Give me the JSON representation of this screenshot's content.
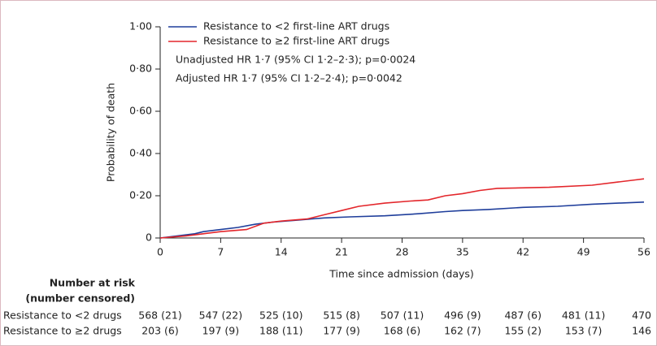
{
  "chart_data": {
    "type": "line",
    "step": true,
    "x_label": "Time since admission (days)",
    "y_label": "Probability of death",
    "xlim": [
      0,
      56
    ],
    "xticks": [
      0,
      7,
      14,
      21,
      28,
      35,
      42,
      49,
      56
    ],
    "ylim": [
      0,
      1
    ],
    "yticks": [
      0,
      {
        "value": 0.2,
        "label": "0·20"
      },
      {
        "value": 0.4,
        "label": "0·40"
      },
      {
        "value": 0.6,
        "label": "0·60"
      },
      {
        "value": 0.8,
        "label": "0·80"
      },
      {
        "value": 1,
        "label": "1·00"
      }
    ],
    "series": [
      {
        "name": "Resistance to <2 first-line ART drugs",
        "color": "#1f3e9b",
        "x": [
          0,
          2,
          4,
          5,
          7,
          9,
          11,
          13,
          16,
          19,
          22,
          26,
          30,
          33,
          35,
          38,
          42,
          46,
          50,
          53,
          56
        ],
        "values": [
          0,
          0.01,
          0.02,
          0.03,
          0.04,
          0.05,
          0.065,
          0.075,
          0.085,
          0.095,
          0.1,
          0.105,
          0.115,
          0.125,
          0.13,
          0.135,
          0.145,
          0.15,
          0.16,
          0.165,
          0.17
        ]
      },
      {
        "name": "Resistance to ≥2 first-line ART drugs",
        "color": "#e3262b",
        "x": [
          0,
          3,
          5,
          7,
          10,
          12,
          14,
          17,
          19,
          21,
          23,
          26,
          29,
          31,
          33,
          35,
          37,
          39,
          45,
          50,
          53,
          55,
          56
        ],
        "values": [
          0,
          0.01,
          0.02,
          0.03,
          0.04,
          0.07,
          0.08,
          0.09,
          0.11,
          0.13,
          0.15,
          0.165,
          0.175,
          0.18,
          0.2,
          0.21,
          0.225,
          0.235,
          0.24,
          0.25,
          0.265,
          0.275,
          0.28
        ]
      }
    ],
    "annotations": [
      "Unadjusted HR 1·7 (95% CI 1·2–2·3); p=0·0024",
      "Adjusted HR 1·7 (95% CI 1·2–2·4); p=0·0042"
    ],
    "risk_table": {
      "title": [
        "Number at risk",
        "(number censored)"
      ],
      "rows": [
        {
          "name": "Resistance to <2 drugs",
          "values": [
            "568 (21)",
            "547 (22)",
            "525 (10)",
            "515 (8)",
            "507 (11)",
            "496 (9)",
            "487 (6)",
            "481 (11)",
            "470"
          ]
        },
        {
          "name": "Resistance to ≥2 drugs",
          "values": [
            "203 (6)",
            "197 (9)",
            "188 (11)",
            "177 (9)",
            "168 (6)",
            "162 (7)",
            "155 (2)",
            "153 (7)",
            "146"
          ]
        }
      ]
    }
  }
}
